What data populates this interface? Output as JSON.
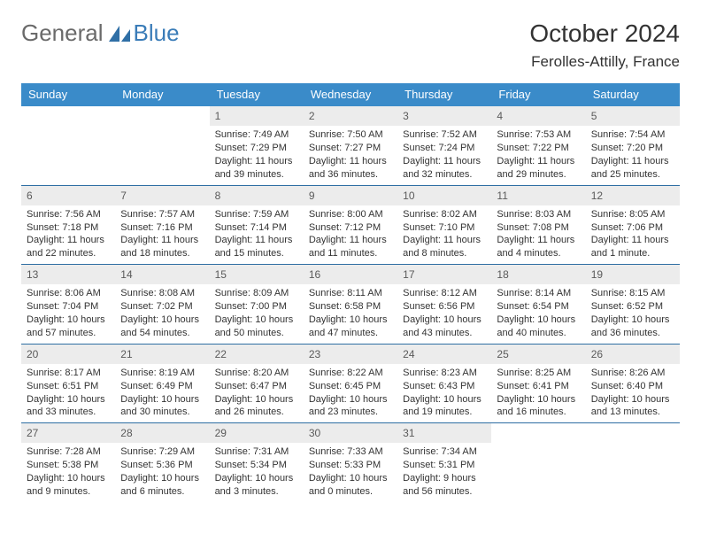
{
  "brand": {
    "part1": "General",
    "part2": "Blue"
  },
  "title": "October 2024",
  "location": "Ferolles-Attilly, France",
  "colors": {
    "header_bg": "#3a8bc9",
    "header_text": "#ffffff",
    "daynum_bg": "#ececec",
    "row_border": "#2e6ea3",
    "brand_gray": "#6a6a6a",
    "brand_blue": "#3a7cb8",
    "text": "#333333",
    "background": "#ffffff"
  },
  "typography": {
    "body_fontsize": 11,
    "weekday_fontsize": 13,
    "month_fontsize": 28,
    "location_fontsize": 17,
    "logo_fontsize": 26
  },
  "weekdays": [
    "Sunday",
    "Monday",
    "Tuesday",
    "Wednesday",
    "Thursday",
    "Friday",
    "Saturday"
  ],
  "calendar": {
    "type": "table",
    "columns": 7,
    "rows": 5,
    "leading_blanks": 2,
    "days": [
      {
        "n": 1,
        "sunrise": "7:49 AM",
        "sunset": "7:29 PM",
        "daylight": "11 hours and 39 minutes."
      },
      {
        "n": 2,
        "sunrise": "7:50 AM",
        "sunset": "7:27 PM",
        "daylight": "11 hours and 36 minutes."
      },
      {
        "n": 3,
        "sunrise": "7:52 AM",
        "sunset": "7:24 PM",
        "daylight": "11 hours and 32 minutes."
      },
      {
        "n": 4,
        "sunrise": "7:53 AM",
        "sunset": "7:22 PM",
        "daylight": "11 hours and 29 minutes."
      },
      {
        "n": 5,
        "sunrise": "7:54 AM",
        "sunset": "7:20 PM",
        "daylight": "11 hours and 25 minutes."
      },
      {
        "n": 6,
        "sunrise": "7:56 AM",
        "sunset": "7:18 PM",
        "daylight": "11 hours and 22 minutes."
      },
      {
        "n": 7,
        "sunrise": "7:57 AM",
        "sunset": "7:16 PM",
        "daylight": "11 hours and 18 minutes."
      },
      {
        "n": 8,
        "sunrise": "7:59 AM",
        "sunset": "7:14 PM",
        "daylight": "11 hours and 15 minutes."
      },
      {
        "n": 9,
        "sunrise": "8:00 AM",
        "sunset": "7:12 PM",
        "daylight": "11 hours and 11 minutes."
      },
      {
        "n": 10,
        "sunrise": "8:02 AM",
        "sunset": "7:10 PM",
        "daylight": "11 hours and 8 minutes."
      },
      {
        "n": 11,
        "sunrise": "8:03 AM",
        "sunset": "7:08 PM",
        "daylight": "11 hours and 4 minutes."
      },
      {
        "n": 12,
        "sunrise": "8:05 AM",
        "sunset": "7:06 PM",
        "daylight": "11 hours and 1 minute."
      },
      {
        "n": 13,
        "sunrise": "8:06 AM",
        "sunset": "7:04 PM",
        "daylight": "10 hours and 57 minutes."
      },
      {
        "n": 14,
        "sunrise": "8:08 AM",
        "sunset": "7:02 PM",
        "daylight": "10 hours and 54 minutes."
      },
      {
        "n": 15,
        "sunrise": "8:09 AM",
        "sunset": "7:00 PM",
        "daylight": "10 hours and 50 minutes."
      },
      {
        "n": 16,
        "sunrise": "8:11 AM",
        "sunset": "6:58 PM",
        "daylight": "10 hours and 47 minutes."
      },
      {
        "n": 17,
        "sunrise": "8:12 AM",
        "sunset": "6:56 PM",
        "daylight": "10 hours and 43 minutes."
      },
      {
        "n": 18,
        "sunrise": "8:14 AM",
        "sunset": "6:54 PM",
        "daylight": "10 hours and 40 minutes."
      },
      {
        "n": 19,
        "sunrise": "8:15 AM",
        "sunset": "6:52 PM",
        "daylight": "10 hours and 36 minutes."
      },
      {
        "n": 20,
        "sunrise": "8:17 AM",
        "sunset": "6:51 PM",
        "daylight": "10 hours and 33 minutes."
      },
      {
        "n": 21,
        "sunrise": "8:19 AM",
        "sunset": "6:49 PM",
        "daylight": "10 hours and 30 minutes."
      },
      {
        "n": 22,
        "sunrise": "8:20 AM",
        "sunset": "6:47 PM",
        "daylight": "10 hours and 26 minutes."
      },
      {
        "n": 23,
        "sunrise": "8:22 AM",
        "sunset": "6:45 PM",
        "daylight": "10 hours and 23 minutes."
      },
      {
        "n": 24,
        "sunrise": "8:23 AM",
        "sunset": "6:43 PM",
        "daylight": "10 hours and 19 minutes."
      },
      {
        "n": 25,
        "sunrise": "8:25 AM",
        "sunset": "6:41 PM",
        "daylight": "10 hours and 16 minutes."
      },
      {
        "n": 26,
        "sunrise": "8:26 AM",
        "sunset": "6:40 PM",
        "daylight": "10 hours and 13 minutes."
      },
      {
        "n": 27,
        "sunrise": "7:28 AM",
        "sunset": "5:38 PM",
        "daylight": "10 hours and 9 minutes."
      },
      {
        "n": 28,
        "sunrise": "7:29 AM",
        "sunset": "5:36 PM",
        "daylight": "10 hours and 6 minutes."
      },
      {
        "n": 29,
        "sunrise": "7:31 AM",
        "sunset": "5:34 PM",
        "daylight": "10 hours and 3 minutes."
      },
      {
        "n": 30,
        "sunrise": "7:33 AM",
        "sunset": "5:33 PM",
        "daylight": "10 hours and 0 minutes."
      },
      {
        "n": 31,
        "sunrise": "7:34 AM",
        "sunset": "5:31 PM",
        "daylight": "9 hours and 56 minutes."
      }
    ],
    "labels": {
      "sunrise": "Sunrise:",
      "sunset": "Sunset:",
      "daylight": "Daylight:"
    }
  }
}
